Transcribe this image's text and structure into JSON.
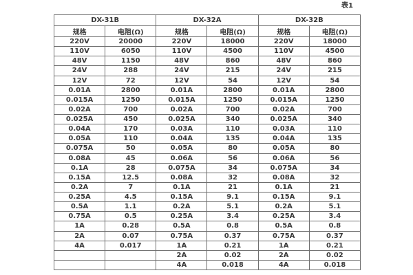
{
  "page": {
    "table_label": "表1"
  },
  "table": {
    "groups": [
      {
        "name": "DX-31B",
        "columns": [
          "规格",
          "电阻(Ω)"
        ],
        "rows": [
          [
            "220V",
            "20000"
          ],
          [
            "110V",
            "6050"
          ],
          [
            "48V",
            "1150"
          ],
          [
            "24V",
            "288"
          ],
          [
            "12V",
            "72"
          ],
          [
            "0.01A",
            "2800"
          ],
          [
            "0.015A",
            "1250"
          ],
          [
            "0.02A",
            "700"
          ],
          [
            "0.025A",
            "450"
          ],
          [
            "0.04A",
            "170"
          ],
          [
            "0.05A",
            "110"
          ],
          [
            "0.075A",
            "50"
          ],
          [
            "0.08A",
            "45"
          ],
          [
            "0.1A",
            "28"
          ],
          [
            "0.15A",
            "12.5"
          ],
          [
            "0.2A",
            "7"
          ],
          [
            "0.25A",
            "4.5"
          ],
          [
            "0.5A",
            "1.1"
          ],
          [
            "0.75A",
            "0.5"
          ],
          [
            "1A",
            "0.28"
          ],
          [
            "2A",
            "0.07"
          ],
          [
            "4A",
            "0.017"
          ],
          [
            "",
            ""
          ],
          [
            "",
            ""
          ]
        ]
      },
      {
        "name": "DX-32A",
        "columns": [
          "规格",
          "电阻(Ω)"
        ],
        "rows": [
          [
            "220V",
            "18000"
          ],
          [
            "110V",
            "4500"
          ],
          [
            "48V",
            "860"
          ],
          [
            "24V",
            "215"
          ],
          [
            "12V",
            "54"
          ],
          [
            "0.01A",
            "2800"
          ],
          [
            "0.015A",
            "1250"
          ],
          [
            "0.02A",
            "700"
          ],
          [
            "0.025A",
            "340"
          ],
          [
            "0.03A",
            "110"
          ],
          [
            "0.04A",
            "135"
          ],
          [
            "0.05A",
            "80"
          ],
          [
            "0.06A",
            "56"
          ],
          [
            "0.075A",
            "34"
          ],
          [
            "0.08A",
            "32"
          ],
          [
            "0.1A",
            "21"
          ],
          [
            "0.15A",
            "9.1"
          ],
          [
            "0.2A",
            "5.1"
          ],
          [
            "0.25A",
            "3.4"
          ],
          [
            "0.5A",
            "0.8"
          ],
          [
            "0.75A",
            "0.37"
          ],
          [
            "1A",
            "0.21"
          ],
          [
            "2A",
            "0.02"
          ],
          [
            "4A",
            "0.018"
          ]
        ]
      },
      {
        "name": "DX-32B",
        "columns": [
          "规格",
          "电阻(Ω)"
        ],
        "rows": [
          [
            "220V",
            "18000"
          ],
          [
            "110V",
            "4500"
          ],
          [
            "48V",
            "860"
          ],
          [
            "24V",
            "215"
          ],
          [
            "12V",
            "54"
          ],
          [
            "0.01A",
            "2800"
          ],
          [
            "0.015A",
            "1250"
          ],
          [
            "0.02A",
            "700"
          ],
          [
            "0.025A",
            "340"
          ],
          [
            "0.03A",
            "110"
          ],
          [
            "0.04A",
            "135"
          ],
          [
            "0.05A",
            "80"
          ],
          [
            "0.06A",
            "56"
          ],
          [
            "0.075A",
            "34"
          ],
          [
            "0.08A",
            "32"
          ],
          [
            "0.1A",
            "21"
          ],
          [
            "0.15A",
            "9.1"
          ],
          [
            "0.2A",
            "5.1"
          ],
          [
            "0.25A",
            "3.4"
          ],
          [
            "0.5A",
            "0.8"
          ],
          [
            "0.75A",
            "0.37"
          ],
          [
            "1A",
            "0.21"
          ],
          [
            "2A",
            "0.02"
          ],
          [
            "4A",
            "0.018"
          ]
        ]
      }
    ],
    "colors": {
      "border": "#6e6e6e",
      "text": "#3a3a3a",
      "background": "#ffffff"
    }
  }
}
